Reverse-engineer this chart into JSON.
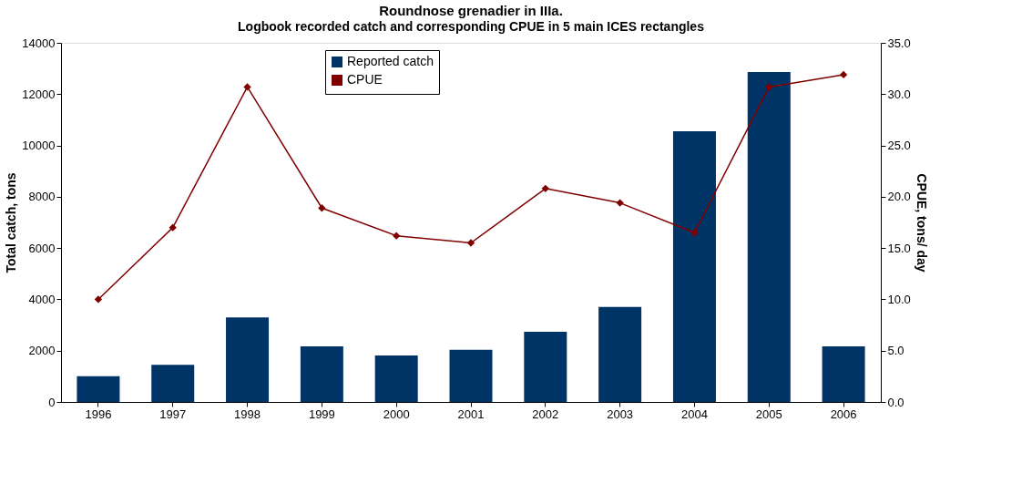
{
  "chart_data": {
    "type": "bar",
    "title": "Roundnose grenadier in IIIa.",
    "subtitle": "Logbook recorded catch and corresponding CPUE in 5 main ICES rectangles",
    "categories": [
      "1996",
      "1997",
      "1998",
      "1999",
      "2000",
      "2001",
      "2002",
      "2003",
      "2004",
      "2005",
      "2006"
    ],
    "series": [
      {
        "name": "Reported catch",
        "color": "#003366",
        "values": [
          1000,
          1450,
          3300,
          2170,
          1810,
          2030,
          2740,
          3700,
          10550,
          12860,
          2170
        ]
      },
      {
        "name": "CPUE",
        "type": "line",
        "axis": "y2",
        "color": "#800000",
        "marker": "diamond",
        "values": [
          10.0,
          17.0,
          30.7,
          18.9,
          16.2,
          15.5,
          20.8,
          19.4,
          16.5,
          30.7,
          31.9
        ]
      }
    ],
    "ylabel": "Total catch, tons",
    "y2label": "CPUE, tons/ day",
    "ylim": [
      0,
      14000
    ],
    "yticks": [
      0,
      2000,
      4000,
      6000,
      8000,
      10000,
      12000,
      14000
    ],
    "y2lim": [
      0,
      35
    ],
    "y2ticks": [
      {
        "value": 0,
        "label": "0.0"
      },
      {
        "value": 5,
        "label": "5.0"
      },
      {
        "value": 10,
        "label": "10.0"
      },
      {
        "value": 15,
        "label": "15.0"
      },
      {
        "value": 20,
        "label": "20.0"
      },
      {
        "value": 25,
        "label": "25.0"
      },
      {
        "value": 30,
        "label": "30.0"
      },
      {
        "value": 35,
        "label": "35.0"
      }
    ],
    "grid": false,
    "legend": "top"
  }
}
